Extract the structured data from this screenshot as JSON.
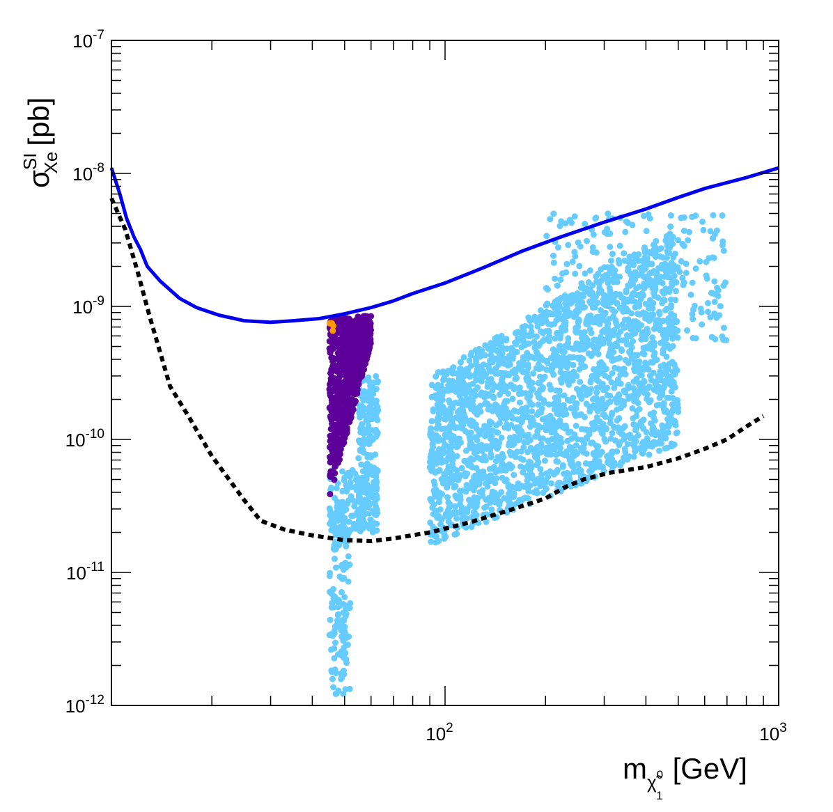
{
  "chart_data": {
    "type": "scatter",
    "xscale": "log",
    "yscale": "log",
    "xlim": [
      10,
      1000
    ],
    "ylim": [
      1e-12,
      1e-07
    ],
    "xlabel": {
      "symbol": "m",
      "subscript": "χ̃",
      "sub_super": "0",
      "sub_index": "1",
      "unit": "[GeV]"
    },
    "ylabel": {
      "symbol": "σ",
      "superscript": "SI",
      "subscript": "Xe",
      "unit": "[pb]"
    },
    "x_tick_labels": [
      {
        "value": 100,
        "base": "10",
        "exp": "2"
      },
      {
        "value": 1000,
        "base": "10",
        "exp": "3"
      }
    ],
    "y_tick_labels": [
      {
        "value": 1e-07,
        "base": "10",
        "exp": "-7"
      },
      {
        "value": 1e-08,
        "base": "10",
        "exp": "-8"
      },
      {
        "value": 1e-09,
        "base": "10",
        "exp": "-9"
      },
      {
        "value": 1e-10,
        "base": "10",
        "exp": "-10"
      },
      {
        "value": 1e-11,
        "base": "10",
        "exp": "-11"
      },
      {
        "value": 1e-12,
        "base": "10",
        "exp": "-12"
      }
    ],
    "curves": [
      {
        "name": "current-limit",
        "color": "#0000ee",
        "style": "solid",
        "points": [
          [
            10,
            1.1e-08
          ],
          [
            10.6,
            7e-09
          ],
          [
            11.1,
            4.6e-09
          ],
          [
            11.7,
            3.3e-09
          ],
          [
            12.2,
            2.7e-09
          ],
          [
            12.8,
            2e-09
          ],
          [
            14,
            1.55e-09
          ],
          [
            16,
            1.15e-09
          ],
          [
            18,
            9.8e-10
          ],
          [
            21,
            8.6e-10
          ],
          [
            25,
            7.8e-10
          ],
          [
            30,
            7.6e-10
          ],
          [
            35,
            7.8e-10
          ],
          [
            42,
            8.1e-10
          ],
          [
            50,
            8.8e-10
          ],
          [
            60,
            9.8e-10
          ],
          [
            70,
            1.1e-09
          ],
          [
            80,
            1.25e-09
          ],
          [
            100,
            1.5e-09
          ],
          [
            130,
            1.95e-09
          ],
          [
            170,
            2.6e-09
          ],
          [
            220,
            3.3e-09
          ],
          [
            300,
            4.3e-09
          ],
          [
            400,
            5.4e-09
          ],
          [
            500,
            6.6e-09
          ],
          [
            600,
            7.7e-09
          ],
          [
            800,
            9.3e-09
          ],
          [
            1000,
            1.1e-08
          ]
        ]
      },
      {
        "name": "projected-limit",
        "color": "#000000",
        "style": "dotted",
        "points": [
          [
            10,
            6.5e-09
          ],
          [
            11,
            3.8e-09
          ],
          [
            12,
            1.8e-09
          ],
          [
            13,
            8.5e-10
          ],
          [
            14,
            4.5e-10
          ],
          [
            15,
            2.5e-10
          ],
          [
            17,
            1.5e-10
          ],
          [
            20,
            7.5e-11
          ],
          [
            25,
            3.5e-11
          ],
          [
            28,
            2.45e-11
          ],
          [
            33,
            2.1e-11
          ],
          [
            40,
            1.9e-11
          ],
          [
            50,
            1.75e-11
          ],
          [
            60,
            1.72e-11
          ],
          [
            70,
            1.8e-11
          ],
          [
            90,
            2e-11
          ],
          [
            120,
            2.4e-11
          ],
          [
            160,
            3e-11
          ],
          [
            200,
            3.6e-11
          ],
          [
            230,
            4.4e-11
          ],
          [
            260,
            5e-11
          ],
          [
            310,
            5.6e-11
          ],
          [
            400,
            6.2e-11
          ],
          [
            500,
            7.2e-11
          ],
          [
            600,
            8.5e-11
          ],
          [
            700,
            1e-10
          ],
          [
            800,
            1.25e-10
          ],
          [
            900,
            1.5e-10
          ]
        ]
      }
    ],
    "point_series": [
      {
        "name": "light-blue-points",
        "color": "#66ccff",
        "regions": [
          {
            "xmin": 45,
            "xmax": 52,
            "ymin": 1.2e-12,
            "ymax": 3e-11,
            "count": 150
          },
          {
            "xmin": 45,
            "xmax": 58,
            "ymin": 2e-11,
            "ymax": 6e-11,
            "count": 100
          },
          {
            "xmin": 55,
            "xmax": 63,
            "ymin": 2e-11,
            "ymax": 3e-10,
            "count": 220
          },
          {
            "xmin": 90,
            "xmax": 500,
            "ymin": 1.2e-11,
            "ymax": 4e-09,
            "count": 2200,
            "envelope": "triangle"
          },
          {
            "xmin": 200,
            "xmax": 700,
            "ymin": 5e-10,
            "ymax": 5e-09,
            "count": 250
          }
        ]
      },
      {
        "name": "purple-points",
        "color": "#5c0099",
        "regions": [
          {
            "xmin": 45,
            "xmax": 60,
            "ymin": 3.5e-11,
            "ymax": 8.5e-10,
            "count": 800,
            "envelope": "wedge"
          }
        ]
      },
      {
        "name": "orange-points",
        "color": "#ff9900",
        "regions": [
          {
            "xmin": 45,
            "xmax": 47,
            "ymin": 6.5e-10,
            "ymax": 7.5e-10,
            "count": 4
          }
        ]
      }
    ]
  }
}
